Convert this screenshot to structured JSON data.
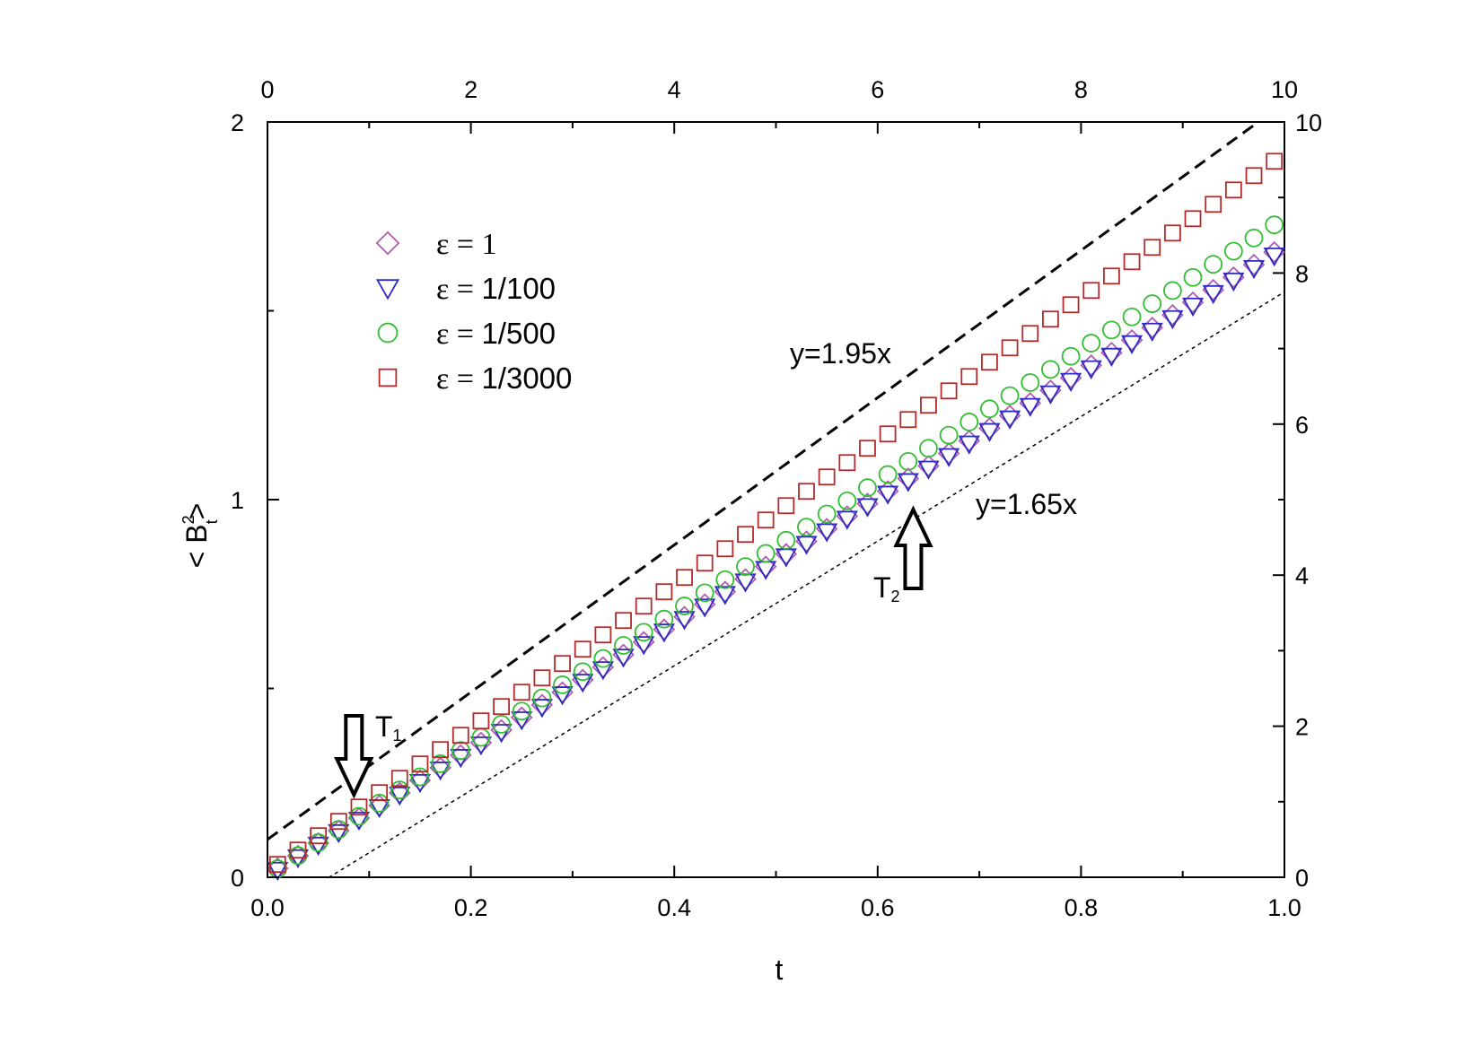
{
  "chart_data": {
    "type": "scatter",
    "title": "",
    "xlabel": "t",
    "ylabel": "< B",
    "ylabel_sup": "2",
    "ylabel_sub": "t",
    "ylabel_end": ">",
    "xlim": [
      0,
      1
    ],
    "ylim": [
      0,
      2
    ],
    "top_xlim": [
      0,
      10
    ],
    "right_ylim": [
      0,
      10
    ],
    "grid": false,
    "legend_position": "upper-left",
    "x_ticks": [
      "0.0",
      "0.2",
      "0.4",
      "0.6",
      "0.8",
      "1.0"
    ],
    "y_ticks": [
      "0",
      "1",
      "2"
    ],
    "top_ticks": [
      "0",
      "2",
      "4",
      "6",
      "8",
      "10"
    ],
    "right_ticks": [
      "0",
      "2",
      "4",
      "6",
      "8",
      "10"
    ],
    "x": [
      0.01,
      0.03,
      0.05,
      0.07,
      0.09,
      0.11,
      0.13,
      0.15,
      0.17,
      0.19,
      0.21,
      0.23,
      0.25,
      0.27,
      0.29,
      0.31,
      0.33,
      0.35,
      0.37,
      0.39,
      0.41,
      0.43,
      0.45,
      0.47,
      0.49,
      0.51,
      0.53,
      0.55,
      0.57,
      0.59,
      0.61,
      0.63,
      0.65,
      0.67,
      0.69,
      0.71,
      0.73,
      0.75,
      0.77,
      0.79,
      0.81,
      0.83,
      0.85,
      0.87,
      0.89,
      0.91,
      0.93,
      0.95,
      0.97,
      0.99
    ],
    "series": [
      {
        "name": "ε = 1",
        "eps_symbol": "ε =",
        "value_label": "1",
        "marker": "diamond",
        "color": "#b05cb0",
        "slope": 1.665,
        "intercept": 0.007
      },
      {
        "name": "ε = 1/100",
        "eps_symbol": "ε =",
        "value_label": "1/100",
        "marker": "triangle-down",
        "color": "#2b2bbf",
        "slope": 1.66,
        "intercept": 0.003
      },
      {
        "name": "ε = 1/500",
        "eps_symbol": "ε =",
        "value_label": "1/500",
        "marker": "circle",
        "color": "#2fbf2f",
        "slope": 1.74,
        "intercept": 0.005
      },
      {
        "name": "ε = 1/3000",
        "eps_symbol": "ε =",
        "value_label": "1/3000",
        "marker": "square",
        "color": "#b52a2a",
        "slope": 1.9,
        "intercept": 0.015
      }
    ],
    "reference_lines": [
      {
        "label": "y=1.95x",
        "style": "dashed",
        "slope": 1.95,
        "intercept": 0.1
      },
      {
        "label": "y=1.65x",
        "style": "dotted",
        "slope": 1.65,
        "intercept": -0.1
      }
    ],
    "arrows": [
      {
        "label": "T",
        "sub": "1",
        "direction": "down",
        "x": 0.085
      },
      {
        "label": "T",
        "sub": "2",
        "direction": "up",
        "x": 0.635
      }
    ]
  }
}
